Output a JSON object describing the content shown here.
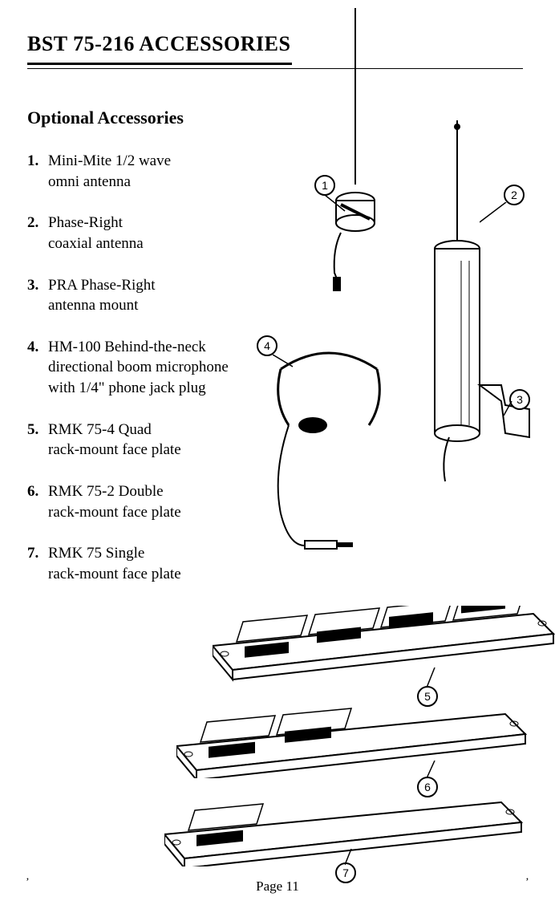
{
  "header": {
    "title": "BST 75-216 ACCESSORIES"
  },
  "subtitle": "Optional Accessories",
  "items": [
    {
      "n": "1.",
      "text": "Mini-Mite 1/2 wave\nomni antenna"
    },
    {
      "n": "2.",
      "text": "Phase-Right\ncoaxial antenna"
    },
    {
      "n": "3.",
      "text": "PRA  Phase-Right\nantenna mount"
    },
    {
      "n": "4.",
      "text": "HM-100  Behind-the-neck\ndirectional boom microphone\nwith 1/4\" phone jack plug"
    },
    {
      "n": "5.",
      "text": "RMK 75-4  Quad\nrack-mount face plate"
    },
    {
      "n": "6.",
      "text": "RMK 75-2  Double\nrack-mount face plate"
    },
    {
      "n": "7.",
      "text": "RMK 75  Single\nrack-mount face plate"
    }
  ],
  "callouts": {
    "c1": "1",
    "c2": "2",
    "c3": "3",
    "c4": "4",
    "c5": "5",
    "c6": "6",
    "c7": "7"
  },
  "footer": "Page 11",
  "colors": {
    "text": "#000000",
    "background": "#ffffff"
  },
  "style": {
    "title_fontsize": 26,
    "body_fontsize": 19,
    "callout_diameter": 22,
    "line_color": "#000000"
  }
}
